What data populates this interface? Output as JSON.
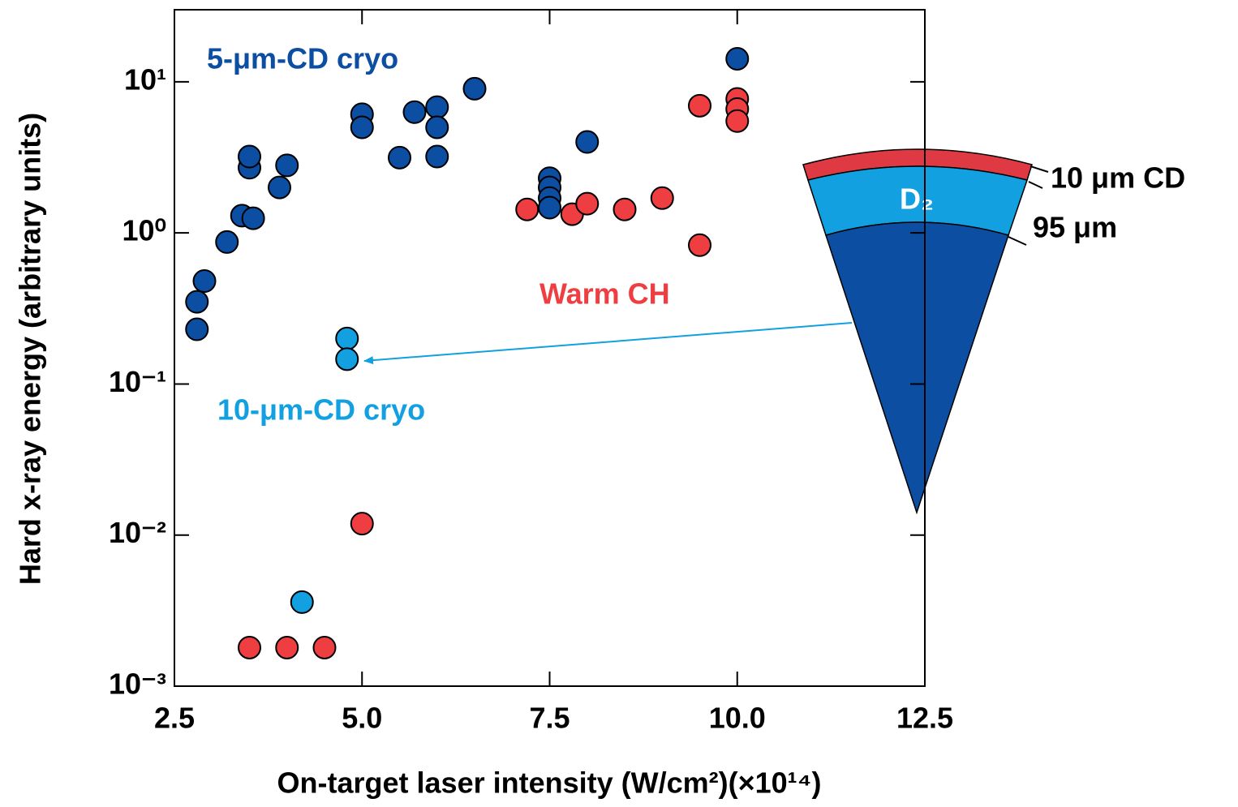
{
  "chart_data": {
    "type": "scatter",
    "x_label": "On-target laser intensity (W/cm²)(×10¹⁴)",
    "y_label": "Hard x-ray energy (arbitrary units)",
    "xlim": [
      2.5,
      12.5
    ],
    "xticks": [
      2.5,
      {
        "value": 5,
        "label": "5.0"
      },
      7.5,
      {
        "value": 10,
        "label": "10.0"
      },
      12.5
    ],
    "ylim": [
      0.001,
      30
    ],
    "yscale": "log",
    "yticks": [
      {
        "value": 0.001,
        "label": "10⁻³"
      },
      {
        "value": 0.01,
        "label": "10⁻²"
      },
      {
        "value": 0.1,
        "label": "10⁻¹"
      },
      {
        "value": 1,
        "label": "10⁰"
      },
      {
        "value": 10,
        "label": "10¹"
      }
    ],
    "grid": false,
    "series": [
      {
        "name": "5-μm-CD cryo",
        "color": "#0b4ea2",
        "x": [
          2.8,
          2.8,
          2.9,
          3.2,
          3.4,
          3.55,
          3.5,
          3.5,
          3.9,
          4.0,
          5.0,
          5.0,
          5.5,
          5.7,
          6.0,
          6.0,
          6.0,
          6.5,
          7.5,
          7.5,
          7.5,
          7.5,
          8.0,
          10.0
        ],
        "values": [
          0.35,
          0.23,
          0.48,
          0.87,
          1.3,
          1.25,
          2.7,
          3.2,
          2.0,
          2.8,
          6.1,
          5.0,
          3.15,
          6.3,
          6.8,
          5.0,
          3.2,
          9.0,
          2.3,
          2.0,
          1.7,
          1.47,
          4.0,
          14.2
        ]
      },
      {
        "name": "10-μm-CD cryo",
        "color": "#12a0e0",
        "x": [
          4.8,
          4.8,
          4.2
        ],
        "values": [
          0.2,
          0.146,
          0.0036
        ]
      },
      {
        "name": "Warm CH",
        "color": "#ef3e42",
        "x": [
          3.5,
          4.0,
          4.5,
          5.0,
          7.2,
          7.8,
          8.0,
          8.5,
          9.0,
          9.5,
          9.5,
          10.0,
          10.0,
          10.0
        ],
        "values": [
          0.0018,
          0.0018,
          0.0018,
          0.0119,
          1.43,
          1.33,
          1.56,
          1.43,
          1.7,
          6.95,
          0.83,
          7.7,
          6.6,
          5.5
        ]
      }
    ],
    "inset": {
      "core": "D₂",
      "shell": "10 μm CD",
      "core_thickness": "95 μm"
    }
  }
}
